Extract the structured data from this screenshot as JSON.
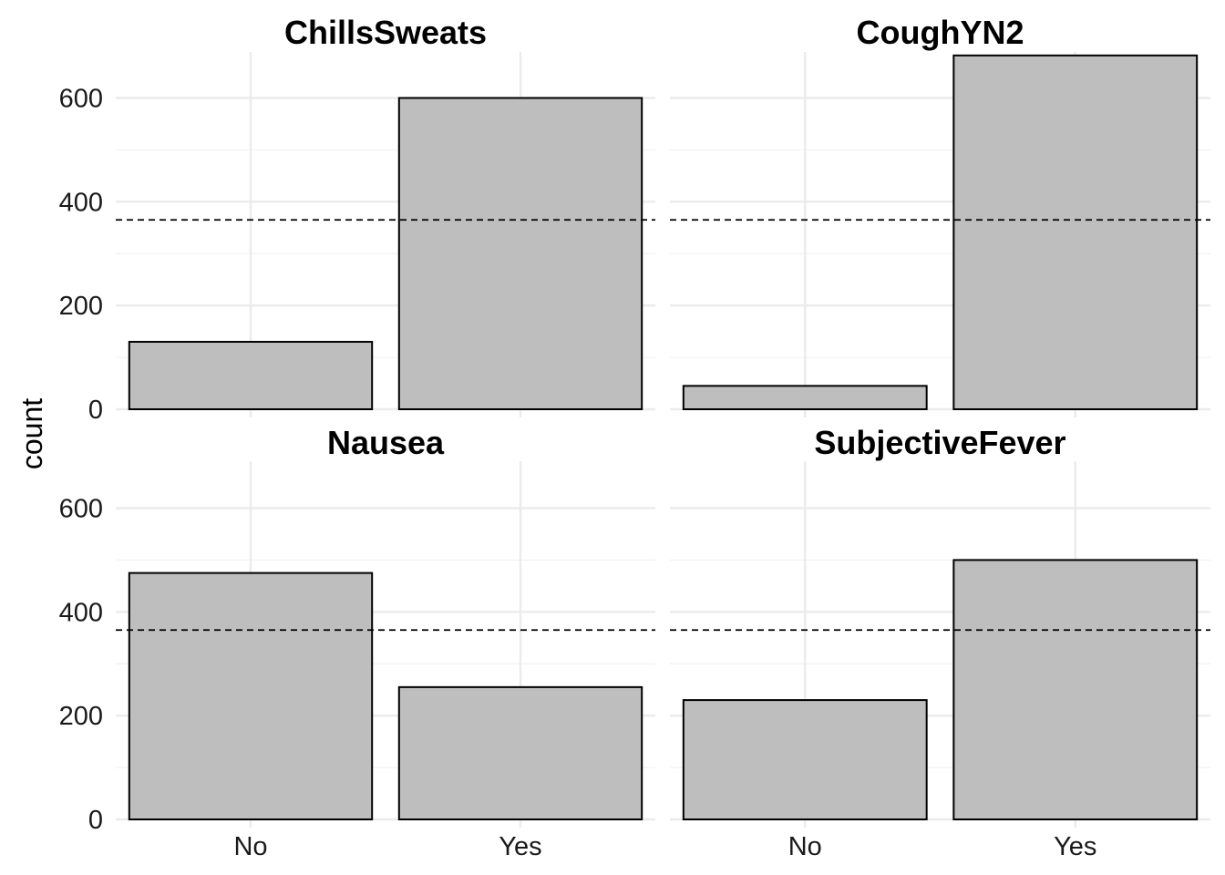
{
  "chart_data": {
    "type": "bar",
    "facet": true,
    "ylabel": "count",
    "xlabel": "",
    "categories": [
      "No",
      "Yes"
    ],
    "ylim": [
      0,
      690
    ],
    "yticks": [
      0,
      200,
      400,
      600
    ],
    "grid": true,
    "reference_line": {
      "y": 365,
      "style": "dashed"
    },
    "bar_fill": "#bebebe",
    "bar_stroke": "#000000",
    "panels": [
      {
        "title": "ChillsSweats",
        "values": [
          130,
          600
        ]
      },
      {
        "title": "CoughYN2",
        "values": [
          45,
          682
        ]
      },
      {
        "title": "Nausea",
        "values": [
          475,
          255
        ]
      },
      {
        "title": "SubjectiveFever",
        "values": [
          230,
          500
        ]
      }
    ]
  }
}
